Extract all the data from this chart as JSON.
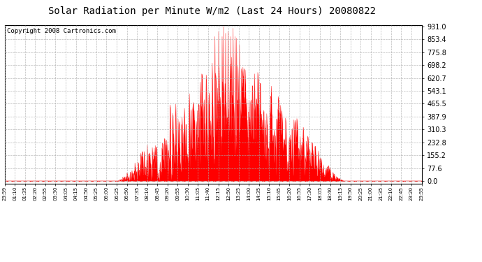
{
  "title": "Solar Radiation per Minute W/m2 (Last 24 Hours) 20080822",
  "copyright": "Copyright 2008 Cartronics.com",
  "ymax": 931.0,
  "yticks": [
    0.0,
    77.6,
    155.2,
    232.8,
    310.3,
    387.9,
    465.5,
    543.1,
    620.7,
    698.2,
    775.8,
    853.4,
    931.0
  ],
  "fill_color": "#FF0000",
  "line_color": "#FF0000",
  "dashed_line_color": "#FF0000",
  "bg_color": "#FFFFFF",
  "grid_color": "#AAAAAA",
  "title_fontsize": 10,
  "copyright_fontsize": 6.5,
  "tick_labels": [
    "23:59",
    "01:10",
    "01:35",
    "02:20",
    "02:55",
    "03:30",
    "04:05",
    "04:15",
    "04:50",
    "05:25",
    "06:00",
    "06:25",
    "06:50",
    "07:35",
    "08:10",
    "08:45",
    "09:20",
    "09:55",
    "10:30",
    "11:05",
    "11:40",
    "12:15",
    "12:50",
    "13:25",
    "14:00",
    "14:35",
    "15:10",
    "15:45",
    "16:20",
    "16:55",
    "17:30",
    "18:05",
    "18:40",
    "19:15",
    "19:50",
    "20:25",
    "21:00",
    "21:35",
    "22:10",
    "22:45",
    "23:20",
    "23:55"
  ],
  "sunrise_minute": 390,
  "sunset_minute": 1170,
  "peak_minute": 770,
  "peak_value": 931.0
}
